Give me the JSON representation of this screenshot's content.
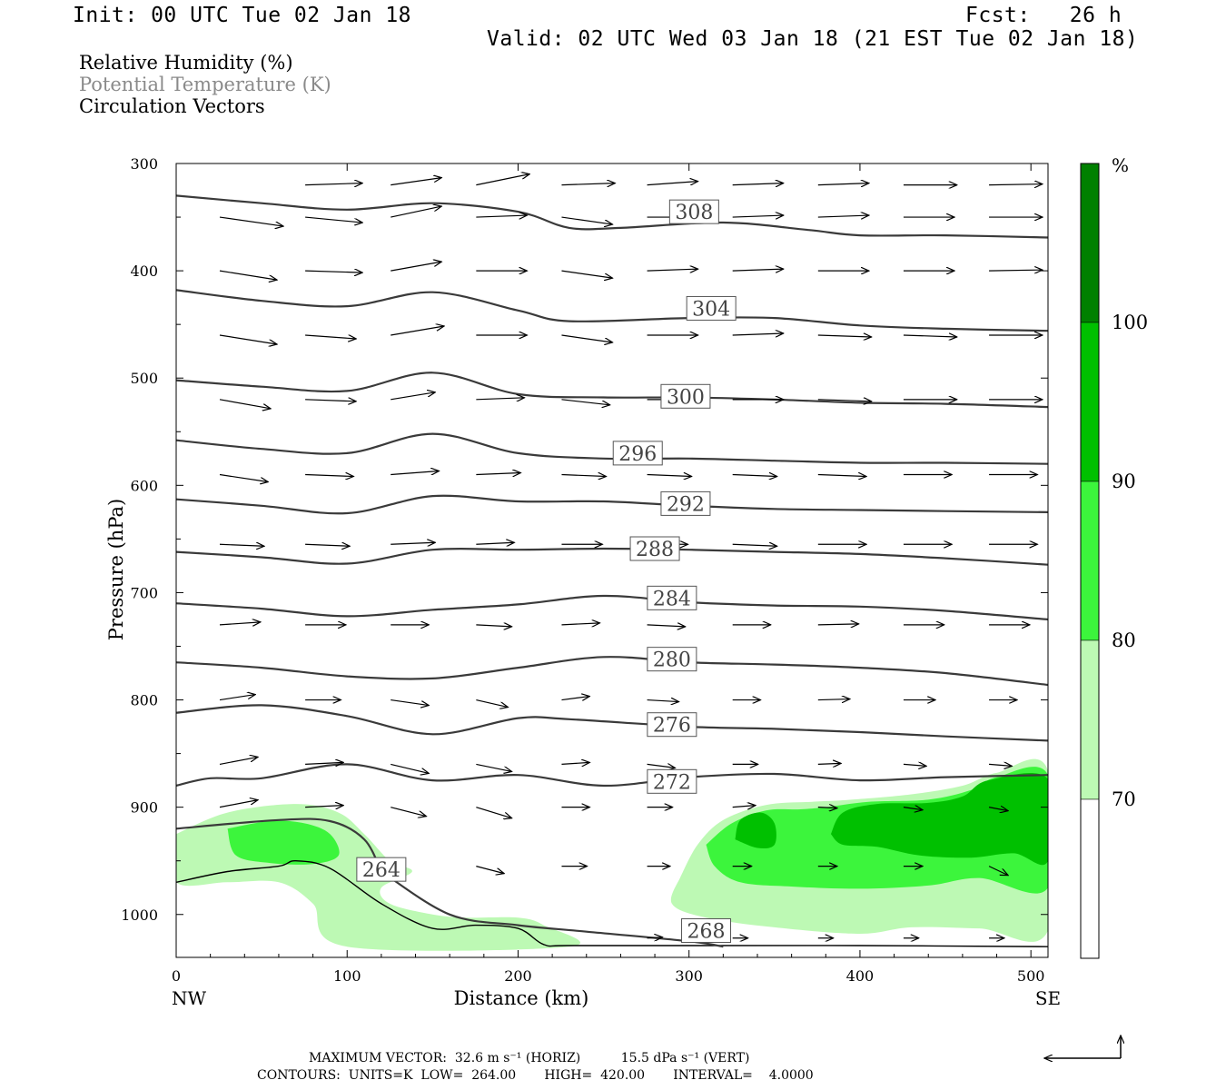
{
  "header": {
    "init": "Init: 00 UTC Tue 02 Jan 18",
    "fcst": "Fcst:   26 h",
    "valid": "Valid: 02 UTC Wed 03 Jan 18 (21 EST Tue 02 Jan 18)"
  },
  "legend": {
    "line1": "Relative Humidity (%)",
    "line2": "Potential Temperature (K)",
    "line3": "Circulation Vectors"
  },
  "chart_data": {
    "type": "cross-section",
    "xlabel": "Distance (km)",
    "ylabel": "Pressure (hPa)",
    "x_range": [
      0,
      510
    ],
    "y_range": [
      300,
      1040
    ],
    "x_ticks": [
      0,
      100,
      200,
      300,
      400,
      500
    ],
    "x_tick_labels": [
      "0",
      "100",
      "200",
      "300",
      "400",
      "500"
    ],
    "y_ticks": [
      300,
      400,
      500,
      600,
      700,
      800,
      900,
      1000
    ],
    "y_tick_labels": [
      "300",
      "400",
      "500",
      "600",
      "700",
      "800",
      "900",
      "1000"
    ],
    "left_end_label": "NW",
    "right_end_label": "SE",
    "colorbar": {
      "unit": "%",
      "levels": [
        70,
        80,
        90,
        100
      ],
      "level_labels": [
        "70",
        "80",
        "90",
        "100"
      ],
      "colors": [
        "#ffffff",
        "#bdf9b4",
        "#3cf53c",
        "#00c000",
        "#008000"
      ]
    },
    "theta_contours": [
      {
        "label": "308",
        "x": [
          0,
          50,
          100,
          150,
          200,
          230,
          260,
          320,
          370,
          400,
          450,
          510
        ],
        "p": [
          330,
          337,
          343,
          337,
          345,
          360,
          360,
          355,
          362,
          367,
          367,
          369
        ]
      },
      {
        "label": "304",
        "x": [
          0,
          50,
          100,
          150,
          200,
          230,
          300,
          350,
          400,
          450,
          510
        ],
        "p": [
          418,
          428,
          433,
          420,
          437,
          447,
          444,
          444,
          451,
          454,
          456
        ]
      },
      {
        "label": "300",
        "x": [
          0,
          50,
          100,
          150,
          200,
          250,
          300,
          350,
          400,
          450,
          510
        ],
        "p": [
          502,
          508,
          512,
          495,
          515,
          518,
          518,
          520,
          523,
          524,
          527
        ]
      },
      {
        "label": "296",
        "x": [
          0,
          50,
          100,
          150,
          200,
          250,
          300,
          350,
          400,
          450,
          510
        ],
        "p": [
          558,
          566,
          570,
          552,
          570,
          575,
          575,
          577,
          579,
          579,
          580
        ]
      },
      {
        "label": "292",
        "x": [
          0,
          50,
          100,
          150,
          200,
          250,
          300,
          350,
          400,
          450,
          510
        ],
        "p": [
          613,
          619,
          626,
          610,
          615,
          615,
          619,
          622,
          623,
          624,
          625
        ]
      },
      {
        "label": "288",
        "x": [
          0,
          50,
          100,
          150,
          200,
          250,
          300,
          350,
          400,
          450,
          510
        ],
        "p": [
          662,
          667,
          673,
          660,
          660,
          659,
          660,
          662,
          664,
          668,
          674
        ]
      },
      {
        "label": "284",
        "x": [
          0,
          50,
          100,
          150,
          200,
          250,
          300,
          350,
          400,
          450,
          510
        ],
        "p": [
          710,
          715,
          722,
          716,
          711,
          703,
          709,
          712,
          713,
          717,
          725
        ]
      },
      {
        "label": "280",
        "x": [
          0,
          50,
          100,
          150,
          200,
          250,
          300,
          350,
          400,
          450,
          510
        ],
        "p": [
          765,
          770,
          778,
          780,
          770,
          760,
          765,
          767,
          770,
          775,
          786
        ]
      },
      {
        "label": "276",
        "x": [
          0,
          50,
          100,
          150,
          200,
          230,
          300,
          350,
          400,
          450,
          510
        ],
        "p": [
          812,
          805,
          815,
          832,
          817,
          818,
          825,
          827,
          830,
          834,
          838
        ]
      },
      {
        "label": "272",
        "x": [
          0,
          20,
          50,
          100,
          150,
          200,
          250,
          300,
          350,
          400,
          450,
          510
        ],
        "p": [
          880,
          873,
          873,
          860,
          875,
          870,
          880,
          872,
          869,
          875,
          872,
          870
        ]
      },
      {
        "label": "264",
        "x": [
          0,
          60,
          90,
          110,
          120
        ],
        "p": [
          920,
          912,
          913,
          930,
          960
        ]
      },
      {
        "label": "268",
        "x": [
          120,
          160,
          200,
          240,
          300,
          320
        ],
        "p": [
          960,
          1000,
          1010,
          1016,
          1025,
          1030
        ]
      }
    ],
    "terrain_pressure": {
      "x": [
        0,
        30,
        60,
        70,
        90,
        120,
        150,
        175,
        200,
        215,
        230,
        300,
        400,
        510
      ],
      "p": [
        970,
        960,
        955,
        950,
        957,
        990,
        1013,
        1010,
        1013,
        1028,
        1029,
        1029,
        1029,
        1030
      ]
    },
    "rh_regions": [
      {
        "level": 70,
        "desc": "west low-level moist zone",
        "x": [
          0,
          80,
          110,
          130
        ],
        "p_top": 905,
        "p_bottom": 1010
      },
      {
        "level": 80,
        "desc": "west embedded",
        "x": [
          30,
          80
        ],
        "p_top": 920,
        "p_bottom": 950
      },
      {
        "level": 70,
        "desc": "east low-level moist zone",
        "x": [
          290,
          510
        ],
        "p_top": 865,
        "p_bottom": 1010
      },
      {
        "level": 80,
        "desc": "east embedded",
        "x": [
          310,
          510
        ],
        "p_top": 880,
        "p_bottom": 975
      },
      {
        "level": 90,
        "desc": "east core",
        "x": [
          380,
          510
        ],
        "p_top": 870,
        "p_bottom": 950
      }
    ]
  },
  "footer": {
    "line1": "MAXIMUM VECTOR:  32.6 m s⁻¹ (HORIZ)          15.5 dPa s⁻¹ (VERT)",
    "line2": "CONTOURS:  UNITS=K  LOW=  264.00       HIGH=  420.00       INTERVAL=    4.0000"
  }
}
